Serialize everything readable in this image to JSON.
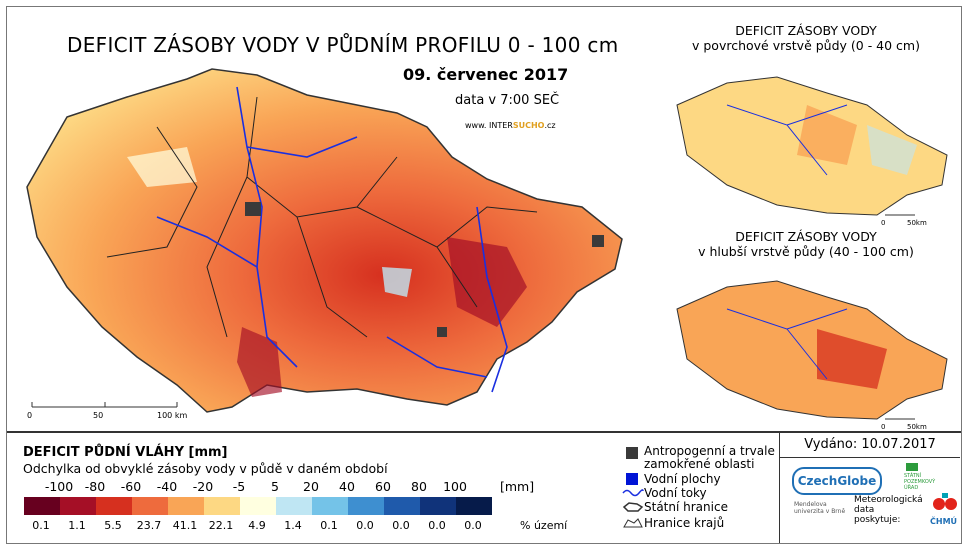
{
  "main_map": {
    "title": "DEFICIT ZÁSOBY VODY V PŮDNÍM PROFILU 0 - 100 cm",
    "date": "09. červenec 2017",
    "time": "data v 7:00 SEČ",
    "website_prefix": "www. INTER",
    "website_brand": "SUCHO",
    "website_suffix": ".cz",
    "scale_labels": [
      "0",
      "50",
      "100 km"
    ]
  },
  "inset_top": {
    "title_line1": "DEFICIT ZÁSOBY VODY",
    "title_line2": "v povrchové vrstvě půdy (0 - 40 cm)",
    "scale_labels": [
      "0",
      "50km"
    ]
  },
  "inset_bottom": {
    "title_line1": "DEFICIT ZÁSOBY VODY",
    "title_line2": "v hlubší vrstvě půdy (40 - 100 cm)",
    "scale_labels": [
      "0",
      "50km"
    ]
  },
  "legend": {
    "title": "DEFICIT PŮDNÍ VLÁHY [mm]",
    "subtitle": "Odchylka od obvyklé zásoby vody v půdě v daném období",
    "unit": "[mm]",
    "pct_unit": "% území",
    "class_bounds": [
      "-100",
      "-80",
      "-60",
      "-40",
      "-20",
      "-5",
      "5",
      "20",
      "40",
      "60",
      "80",
      "100"
    ],
    "classes": [
      {
        "color": "#67001f",
        "pct": "0.1"
      },
      {
        "color": "#a50f26",
        "pct": "1.1"
      },
      {
        "color": "#d6301f",
        "pct": "5.5"
      },
      {
        "color": "#ee6b3d",
        "pct": "23.7"
      },
      {
        "color": "#f9a556",
        "pct": "41.1"
      },
      {
        "color": "#fdd883",
        "pct": "22.1"
      },
      {
        "color": "#ffffe0",
        "pct": "4.9"
      },
      {
        "color": "#bfe6f3",
        "pct": "1.4"
      },
      {
        "color": "#74c3e8",
        "pct": "0.1"
      },
      {
        "color": "#3e8fd0",
        "pct": "0.0"
      },
      {
        "color": "#1f5aab",
        "pct": "0.0"
      },
      {
        "color": "#10337a",
        "pct": "0.0"
      },
      {
        "color": "#061b4a",
        "pct": "0.0"
      }
    ]
  },
  "map_legend": {
    "items": [
      {
        "label1": "Antropogenní a trvale",
        "label2": "zamokřené oblasti",
        "symbol": "square",
        "color": "#3a3a3a"
      },
      {
        "label1": "Vodní plochy",
        "symbol": "square",
        "color": "#0014d6"
      },
      {
        "label1": "Vodní toky",
        "symbol": "wave",
        "color": "#1a2fe0"
      },
      {
        "label1": "Státní hranice",
        "symbol": "outline",
        "color": "#333333"
      },
      {
        "label1": "Hranice krajů",
        "symbol": "outline-thin",
        "color": "#333333"
      }
    ]
  },
  "publication": {
    "issued": "Vydáno: 10.07.2017",
    "logo_czechglobe": "CzechGlobe",
    "logo_spu": "STÁTNÍ POZEMKOVÝ ÚŘAD",
    "logo_mendelu": "Mendelova univerzita v Brně",
    "meteo_line1": "Meteorologická",
    "meteo_line2": "data",
    "meteo_line3": "poskytuje:",
    "logo_chmu": "ČHMÚ",
    "colors": {
      "czechglobe": "#1f6fb5",
      "spu": "#2c9b3c",
      "mendelu": "#6db33f",
      "chmu_red": "#e2231a",
      "chmu_teal": "#00a2b5"
    }
  }
}
